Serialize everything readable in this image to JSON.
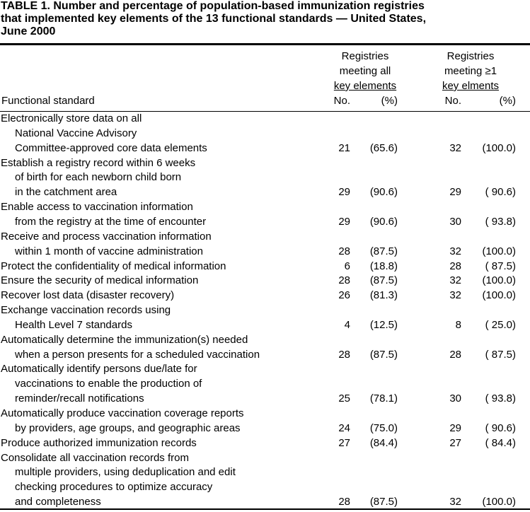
{
  "title": [
    "TABLE 1. Number and percentage of population-based immunization registries",
    "that implemented key elements of the 13 functional standards — United States,",
    "June 2000"
  ],
  "header": {
    "standard": "Functional standard",
    "group_all": [
      "Registries",
      "meeting all",
      "key elements"
    ],
    "group_one": [
      "Registries",
      "meeting ≥1",
      "key elments"
    ],
    "no": "No.",
    "pct": "(%)"
  },
  "rows": [
    {
      "lines": [
        "Electronically store data on all",
        "National Vaccine Advisory",
        "Committee-approved core data elements"
      ],
      "all_no": 21,
      "all_pct": "(65.6)",
      "one_no": 32,
      "one_pct": "(100.0)"
    },
    {
      "lines": [
        "Establish a registry record within 6 weeks",
        "of birth for each newborn child born",
        "in the catchment area"
      ],
      "all_no": 29,
      "all_pct": "(90.6)",
      "one_no": 29,
      "one_pct": "( 90.6)"
    },
    {
      "lines": [
        "Enable access to vaccination information",
        "from the registry at the time of encounter"
      ],
      "all_no": 29,
      "all_pct": "(90.6)",
      "one_no": 30,
      "one_pct": "( 93.8)"
    },
    {
      "lines": [
        "Receive and process vaccination information",
        "within 1 month of vaccine administration"
      ],
      "all_no": 28,
      "all_pct": "(87.5)",
      "one_no": 32,
      "one_pct": "(100.0)"
    },
    {
      "lines": [
        "Protect the confidentiality of medical information"
      ],
      "all_no": 6,
      "all_pct": "(18.8)",
      "one_no": 28,
      "one_pct": "( 87.5)"
    },
    {
      "lines": [
        "Ensure the security of medical information"
      ],
      "all_no": 28,
      "all_pct": "(87.5)",
      "one_no": 32,
      "one_pct": "(100.0)"
    },
    {
      "lines": [
        "Recover lost data (disaster recovery)"
      ],
      "all_no": 26,
      "all_pct": "(81.3)",
      "one_no": 32,
      "one_pct": "(100.0)"
    },
    {
      "lines": [
        "Exchange vaccination records using",
        "Health Level 7 standards"
      ],
      "all_no": 4,
      "all_pct": "(12.5)",
      "one_no": 8,
      "one_pct": "( 25.0)"
    },
    {
      "lines": [
        "Automatically determine the immunization(s) needed",
        "when a person presents for a scheduled vaccination"
      ],
      "all_no": 28,
      "all_pct": "(87.5)",
      "one_no": 28,
      "one_pct": "( 87.5)"
    },
    {
      "lines": [
        "Automatically identify persons due/late for",
        "vaccinations to enable the production of",
        "reminder/recall notifications"
      ],
      "all_no": 25,
      "all_pct": "(78.1)",
      "one_no": 30,
      "one_pct": "( 93.8)"
    },
    {
      "lines": [
        "Automatically produce vaccination coverage reports",
        "by providers, age groups, and geographic areas"
      ],
      "all_no": 24,
      "all_pct": "(75.0)",
      "one_no": 29,
      "one_pct": "( 90.6)"
    },
    {
      "lines": [
        "Produce authorized immunization records"
      ],
      "all_no": 27,
      "all_pct": "(84.4)",
      "one_no": 27,
      "one_pct": "( 84.4)"
    },
    {
      "lines": [
        "Consolidate all vaccination records from",
        "multiple providers, using deduplication and edit",
        "checking procedures to optimize accuracy",
        "and completeness"
      ],
      "all_no": 28,
      "all_pct": "(87.5)",
      "one_no": 32,
      "one_pct": "(100.0)"
    }
  ]
}
